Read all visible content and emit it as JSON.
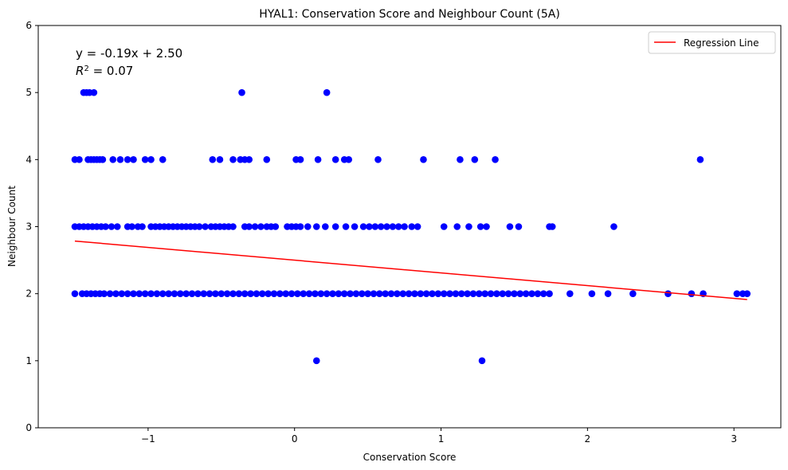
{
  "chart_data": {
    "type": "scatter",
    "title": "HYAL1: Conservation Score and Neighbour Count (5A)",
    "xlabel": "Conservation Score",
    "ylabel": "Neighbour Count",
    "xlim": [
      -1.75,
      3.32
    ],
    "ylim": [
      0,
      6
    ],
    "xticks": [
      -1,
      0,
      1,
      2,
      3
    ],
    "xtick_labels": [
      "−1",
      "0",
      "1",
      "2",
      "3"
    ],
    "yticks": [
      0,
      1,
      2,
      3,
      4,
      5,
      6
    ],
    "ytick_labels": [
      "0",
      "1",
      "2",
      "3",
      "4",
      "5",
      "6"
    ],
    "grid": false,
    "legend": {
      "placement": "top-right",
      "entries": [
        "Regression Line"
      ]
    },
    "annotation": {
      "line1": "y = -0.19x + 2.50",
      "r2_prefix": "R",
      "r2_sup": "2",
      "r2_value": " = 0.07"
    },
    "regression": {
      "name": "Regression Line",
      "slope": -0.19,
      "intercept": 2.5,
      "x_range": [
        -1.5,
        3.09
      ],
      "color": "#ff0000"
    },
    "scatter_color": "#0000ff",
    "series": [
      {
        "points": [
          [
            -1.44,
            5
          ],
          [
            -1.42,
            5
          ],
          [
            -1.4,
            5
          ],
          [
            -1.37,
            5
          ],
          [
            -0.36,
            5
          ],
          [
            0.22,
            5
          ],
          [
            -1.5,
            4
          ],
          [
            -1.47,
            4
          ],
          [
            -1.41,
            4
          ],
          [
            -1.39,
            4
          ],
          [
            -1.37,
            4
          ],
          [
            -1.35,
            4
          ],
          [
            -1.33,
            4
          ],
          [
            -1.31,
            4
          ],
          [
            -1.24,
            4
          ],
          [
            -1.19,
            4
          ],
          [
            -1.14,
            4
          ],
          [
            -1.1,
            4
          ],
          [
            -1.02,
            4
          ],
          [
            -0.98,
            4
          ],
          [
            -0.9,
            4
          ],
          [
            -0.56,
            4
          ],
          [
            -0.51,
            4
          ],
          [
            -0.42,
            4
          ],
          [
            -0.37,
            4
          ],
          [
            -0.34,
            4
          ],
          [
            -0.31,
            4
          ],
          [
            -0.19,
            4
          ],
          [
            0.01,
            4
          ],
          [
            0.04,
            4
          ],
          [
            0.16,
            4
          ],
          [
            0.28,
            4
          ],
          [
            0.34,
            4
          ],
          [
            0.37,
            4
          ],
          [
            0.57,
            4
          ],
          [
            0.88,
            4
          ],
          [
            1.13,
            4
          ],
          [
            1.23,
            4
          ],
          [
            1.37,
            4
          ],
          [
            2.77,
            4
          ],
          [
            -1.5,
            3
          ],
          [
            -1.47,
            3
          ],
          [
            -1.44,
            3
          ],
          [
            -1.41,
            3
          ],
          [
            -1.38,
            3
          ],
          [
            -1.35,
            3
          ],
          [
            -1.32,
            3
          ],
          [
            -1.29,
            3
          ],
          [
            -1.25,
            3
          ],
          [
            -1.21,
            3
          ],
          [
            -1.14,
            3
          ],
          [
            -1.11,
            3
          ],
          [
            -1.07,
            3
          ],
          [
            -1.04,
            3
          ],
          [
            -0.98,
            3
          ],
          [
            -0.95,
            3
          ],
          [
            -0.92,
            3
          ],
          [
            -0.89,
            3
          ],
          [
            -0.86,
            3
          ],
          [
            -0.83,
            3
          ],
          [
            -0.8,
            3
          ],
          [
            -0.77,
            3
          ],
          [
            -0.74,
            3
          ],
          [
            -0.71,
            3
          ],
          [
            -0.68,
            3
          ],
          [
            -0.65,
            3
          ],
          [
            -0.61,
            3
          ],
          [
            -0.57,
            3
          ],
          [
            -0.54,
            3
          ],
          [
            -0.51,
            3
          ],
          [
            -0.48,
            3
          ],
          [
            -0.45,
            3
          ],
          [
            -0.42,
            3
          ],
          [
            -0.34,
            3
          ],
          [
            -0.31,
            3
          ],
          [
            -0.27,
            3
          ],
          [
            -0.23,
            3
          ],
          [
            -0.19,
            3
          ],
          [
            -0.16,
            3
          ],
          [
            -0.13,
            3
          ],
          [
            -0.05,
            3
          ],
          [
            -0.02,
            3
          ],
          [
            0.01,
            3
          ],
          [
            0.04,
            3
          ],
          [
            0.09,
            3
          ],
          [
            0.15,
            3
          ],
          [
            0.21,
            3
          ],
          [
            0.28,
            3
          ],
          [
            0.35,
            3
          ],
          [
            0.41,
            3
          ],
          [
            0.47,
            3
          ],
          [
            0.51,
            3
          ],
          [
            0.55,
            3
          ],
          [
            0.59,
            3
          ],
          [
            0.63,
            3
          ],
          [
            0.67,
            3
          ],
          [
            0.71,
            3
          ],
          [
            0.75,
            3
          ],
          [
            0.8,
            3
          ],
          [
            0.84,
            3
          ],
          [
            1.02,
            3
          ],
          [
            1.11,
            3
          ],
          [
            1.19,
            3
          ],
          [
            1.27,
            3
          ],
          [
            1.31,
            3
          ],
          [
            1.47,
            3
          ],
          [
            1.53,
            3
          ],
          [
            1.74,
            3
          ],
          [
            1.76,
            3
          ],
          [
            2.18,
            3
          ],
          [
            -1.5,
            2
          ],
          [
            -1.45,
            2
          ],
          [
            -1.42,
            2
          ],
          [
            -1.39,
            2
          ],
          [
            -1.36,
            2
          ],
          [
            -1.33,
            2
          ],
          [
            -1.3,
            2
          ],
          [
            -1.26,
            2
          ],
          [
            -1.22,
            2
          ],
          [
            -1.18,
            2
          ],
          [
            -1.14,
            2
          ],
          [
            -1.1,
            2
          ],
          [
            -1.06,
            2
          ],
          [
            -1.02,
            2
          ],
          [
            -0.98,
            2
          ],
          [
            -0.94,
            2
          ],
          [
            -0.9,
            2
          ],
          [
            -0.86,
            2
          ],
          [
            -0.82,
            2
          ],
          [
            -0.78,
            2
          ],
          [
            -0.74,
            2
          ],
          [
            -0.7,
            2
          ],
          [
            -0.66,
            2
          ],
          [
            -0.62,
            2
          ],
          [
            -0.58,
            2
          ],
          [
            -0.54,
            2
          ],
          [
            -0.5,
            2
          ],
          [
            -0.46,
            2
          ],
          [
            -0.42,
            2
          ],
          [
            -0.38,
            2
          ],
          [
            -0.34,
            2
          ],
          [
            -0.3,
            2
          ],
          [
            -0.26,
            2
          ],
          [
            -0.22,
            2
          ],
          [
            -0.18,
            2
          ],
          [
            -0.14,
            2
          ],
          [
            -0.1,
            2
          ],
          [
            -0.06,
            2
          ],
          [
            -0.02,
            2
          ],
          [
            0.02,
            2
          ],
          [
            0.06,
            2
          ],
          [
            0.1,
            2
          ],
          [
            0.14,
            2
          ],
          [
            0.18,
            2
          ],
          [
            0.22,
            2
          ],
          [
            0.26,
            2
          ],
          [
            0.3,
            2
          ],
          [
            0.34,
            2
          ],
          [
            0.38,
            2
          ],
          [
            0.42,
            2
          ],
          [
            0.46,
            2
          ],
          [
            0.5,
            2
          ],
          [
            0.54,
            2
          ],
          [
            0.58,
            2
          ],
          [
            0.62,
            2
          ],
          [
            0.66,
            2
          ],
          [
            0.7,
            2
          ],
          [
            0.74,
            2
          ],
          [
            0.78,
            2
          ],
          [
            0.82,
            2
          ],
          [
            0.86,
            2
          ],
          [
            0.9,
            2
          ],
          [
            0.94,
            2
          ],
          [
            0.98,
            2
          ],
          [
            1.02,
            2
          ],
          [
            1.06,
            2
          ],
          [
            1.1,
            2
          ],
          [
            1.14,
            2
          ],
          [
            1.18,
            2
          ],
          [
            1.22,
            2
          ],
          [
            1.26,
            2
          ],
          [
            1.3,
            2
          ],
          [
            1.34,
            2
          ],
          [
            1.38,
            2
          ],
          [
            1.42,
            2
          ],
          [
            1.46,
            2
          ],
          [
            1.5,
            2
          ],
          [
            1.54,
            2
          ],
          [
            1.58,
            2
          ],
          [
            1.62,
            2
          ],
          [
            1.66,
            2
          ],
          [
            1.7,
            2
          ],
          [
            1.74,
            2
          ],
          [
            1.88,
            2
          ],
          [
            2.03,
            2
          ],
          [
            2.14,
            2
          ],
          [
            2.31,
            2
          ],
          [
            2.55,
            2
          ],
          [
            2.71,
            2
          ],
          [
            2.79,
            2
          ],
          [
            3.02,
            2
          ],
          [
            3.06,
            2
          ],
          [
            3.09,
            2
          ],
          [
            0.15,
            1
          ],
          [
            1.28,
            1
          ]
        ]
      }
    ]
  }
}
